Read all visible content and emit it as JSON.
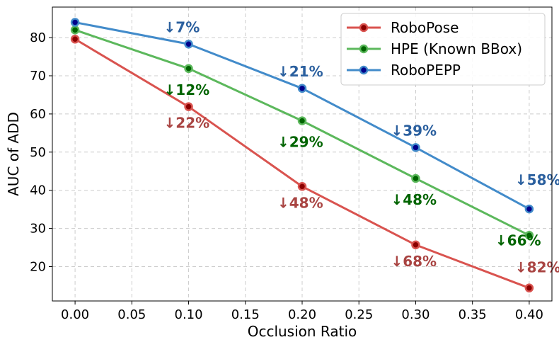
{
  "chart_data": {
    "type": "line",
    "xlabel": "Occlusion Ratio",
    "ylabel": "AUC of ADD",
    "xlim": [
      -0.02,
      0.42
    ],
    "ylim": [
      11,
      88
    ],
    "x_ticks": [
      "0.00",
      "0.05",
      "0.10",
      "0.15",
      "0.20",
      "0.25",
      "0.30",
      "0.35",
      "0.40"
    ],
    "y_ticks": [
      "20",
      "30",
      "40",
      "50",
      "60",
      "70",
      "80"
    ],
    "grid": true,
    "legend_position": "top-right",
    "series": [
      {
        "name": "RoboPose",
        "color": "#d9534f",
        "marker_fill": "#8b0000",
        "label_color": "#a94442",
        "x": [
          0.0,
          0.1,
          0.2,
          0.3,
          0.4
        ],
        "y": [
          79.6,
          61.9,
          41.0,
          25.7,
          14.4
        ],
        "annotations": [
          {
            "x": 0.1,
            "text": "↓22%"
          },
          {
            "x": 0.2,
            "text": "↓48%"
          },
          {
            "x": 0.3,
            "text": "↓68%"
          },
          {
            "x": 0.4,
            "text": "↓82%"
          }
        ]
      },
      {
        "name": "HPE (Known BBox)",
        "color": "#5cb85c",
        "marker_fill": "#006400",
        "label_color": "#006400",
        "x": [
          0.0,
          0.1,
          0.2,
          0.3,
          0.4
        ],
        "y": [
          82.0,
          71.9,
          58.2,
          43.1,
          28.2
        ],
        "annotations": [
          {
            "x": 0.1,
            "text": "↓12%"
          },
          {
            "x": 0.2,
            "text": "↓29%"
          },
          {
            "x": 0.3,
            "text": "↓48%"
          },
          {
            "x": 0.4,
            "text": "↓66%"
          }
        ]
      },
      {
        "name": "RoboPEPP",
        "color": "#428bca",
        "marker_fill": "#00008b",
        "label_color": "#2a5f9e",
        "x": [
          0.0,
          0.1,
          0.2,
          0.3,
          0.4
        ],
        "y": [
          84.0,
          78.3,
          66.7,
          51.2,
          35.1
        ],
        "annotations": [
          {
            "x": 0.1,
            "text": "↓7%"
          },
          {
            "x": 0.2,
            "text": "↓21%"
          },
          {
            "x": 0.3,
            "text": "↓39%"
          },
          {
            "x": 0.4,
            "text": "↓58%"
          }
        ]
      }
    ]
  }
}
